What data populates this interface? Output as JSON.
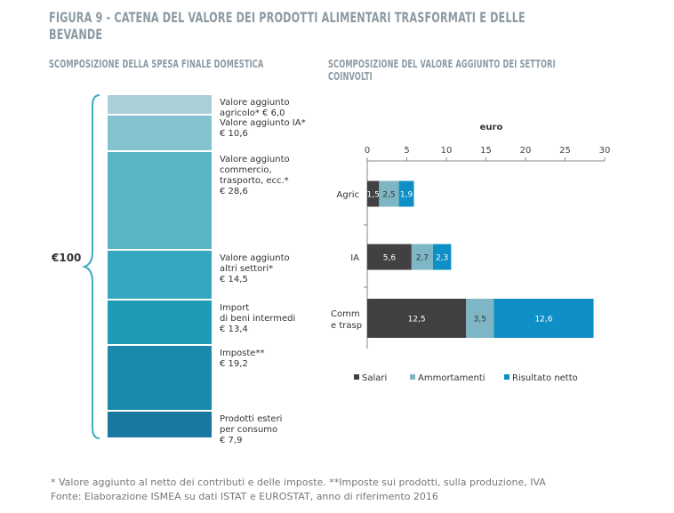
{
  "figure_title": "FIGURA 9 - CATENA DEL VALORE DEI PRODOTTI ALIMENTARI TRASFORMATI E DELLE BEVANDE",
  "left_panel": {
    "title": "SCOMPOSIZIONE DELLA SPESA FINALE DOMESTICA",
    "total_label": "€100",
    "segments": [
      {
        "label": "Valore aggiunto\nagricolo* € 6,0",
        "value": 6.0,
        "color": "#a9cfd8"
      },
      {
        "label": "Valore aggiunto IA*\n€ 10,6",
        "value": 10.6,
        "color": "#84c2cf"
      },
      {
        "label": "Valore aggiunto\ncommercio,\ntrasporto, ecc.*\n€ 28,6",
        "value": 28.6,
        "color": "#5cb4c7"
      },
      {
        "label": "Valore aggiunto\naltri settori*\n€ 14,5",
        "value": 14.5,
        "color": "#35a7bf"
      },
      {
        "label": "Import\ndi beni intermedi\n€ 13,4",
        "value": 13.4,
        "color": "#1f9bb7"
      },
      {
        "label": "Imposte**\n€ 19,2",
        "value": 19.2,
        "color": "#1a8aac"
      },
      {
        "label": "Prodotti esteri\nper consumo\n€ 7,9",
        "value": 7.9,
        "color": "#1878a1"
      }
    ]
  },
  "chart_data": {
    "type": "bar",
    "orientation": "horizontal",
    "stacked": true,
    "title": "SCOMPOSIZIONE DEL VALORE AGGIUNTO DEI SETTORI COINVOLTI",
    "xlabel": "euro",
    "xlim": [
      0,
      30
    ],
    "xticks": [
      "0",
      "5",
      "10",
      "15",
      "20",
      "25",
      "30"
    ],
    "categories": [
      "Agric",
      "IA",
      "Comm\ne trasp"
    ],
    "series": [
      {
        "name": "Salari",
        "color": "#414042",
        "values": [
          1.5,
          5.6,
          12.5
        ],
        "labels": [
          "1,5",
          "5,6",
          "12,5"
        ]
      },
      {
        "name": "Ammortamenti",
        "color": "#7fb6c5",
        "values": [
          2.5,
          2.7,
          3.5
        ],
        "labels": [
          "2,5",
          "2,7",
          "3,5"
        ]
      },
      {
        "name": "Risultato netto",
        "color": "#0e8fc6",
        "values": [
          1.9,
          2.3,
          12.6
        ],
        "labels": [
          "1,9",
          "2,3",
          "12,6"
        ]
      }
    ],
    "legend_position": "bottom",
    "grid": false
  },
  "footnote": "* Valore aggiunto al netto dei contributi e delle imposte. **Imposte sui prodotti, sulla produzione, IVA",
  "source": "Fonte: Elaborazione ISMEA su dati ISTAT e EUROSTAT, anno di riferimento 2016"
}
